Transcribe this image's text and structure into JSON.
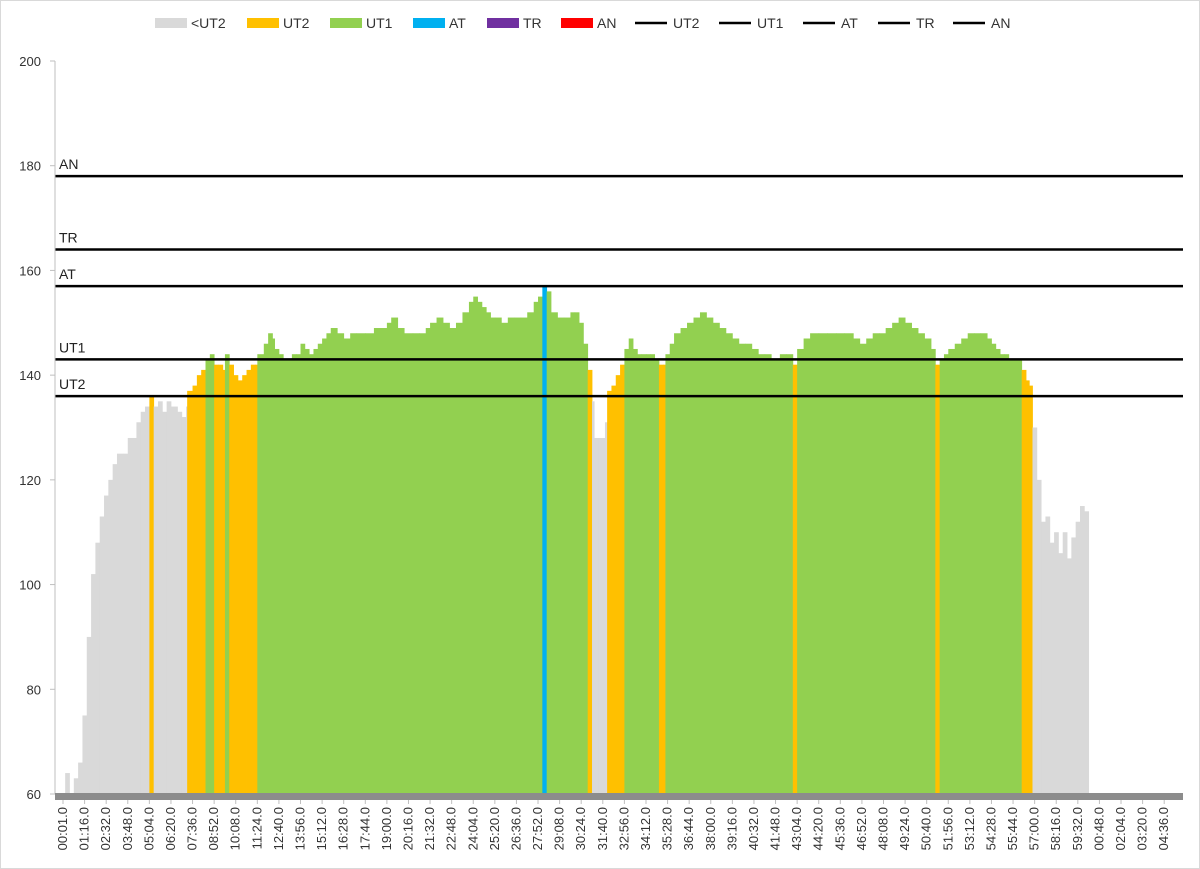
{
  "chart_data": {
    "type": "area",
    "title": "",
    "xlabel": "",
    "ylabel": "",
    "ylim": [
      60,
      200
    ],
    "yticks": [
      60,
      80,
      100,
      120,
      140,
      160,
      180,
      200
    ],
    "x_tick_labels": [
      "00:01.0",
      "01:16.0",
      "02:32.0",
      "03:48.0",
      "05:04.0",
      "06:20.0",
      "07:36.0",
      "08:52.0",
      "10:08.0",
      "11:24.0",
      "12:40.0",
      "13:56.0",
      "15:12.0",
      "16:28.0",
      "17:44.0",
      "19:00.0",
      "20:16.0",
      "21:32.0",
      "22:48.0",
      "24:04.0",
      "25:20.0",
      "26:36.0",
      "27:52.0",
      "29:08.0",
      "30:24.0",
      "31:40.0",
      "32:56.0",
      "34:12.0",
      "35:28.0",
      "36:44.0",
      "38:00.0",
      "39:16.0",
      "40:32.0",
      "41:48.0",
      "43:04.0",
      "44:20.0",
      "45:36.0",
      "46:52.0",
      "48:08.0",
      "49:24.0",
      "50:40.0",
      "51:56.0",
      "53:12.0",
      "54:28.0",
      "55:44.0",
      "57:00.0",
      "58:16.0",
      "59:32.0",
      "00:48.0",
      "02:04.0",
      "03:20.0",
      "04:36.0"
    ],
    "grid": false,
    "legend": {
      "position": "top",
      "entries": [
        {
          "label": "<UT2",
          "kind": "area",
          "color": "#d9d9d9"
        },
        {
          "label": "UT2",
          "kind": "area",
          "color": "#ffc000"
        },
        {
          "label": "UT1",
          "kind": "area",
          "color": "#92d050"
        },
        {
          "label": "AT",
          "kind": "area",
          "color": "#00b0f0"
        },
        {
          "label": "TR",
          "kind": "area",
          "color": "#7030a0"
        },
        {
          "label": "AN",
          "kind": "area",
          "color": "#ff0000"
        },
        {
          "label": "UT2",
          "kind": "line",
          "color": "#000000"
        },
        {
          "label": "UT1",
          "kind": "line",
          "color": "#000000"
        },
        {
          "label": "AT",
          "kind": "line",
          "color": "#000000"
        },
        {
          "label": "TR",
          "kind": "line",
          "color": "#000000"
        },
        {
          "label": "AN",
          "kind": "line",
          "color": "#000000"
        }
      ]
    },
    "thresholds": [
      {
        "label": "UT2",
        "value": 136
      },
      {
        "label": "UT1",
        "value": 143
      },
      {
        "label": "AT",
        "value": 157
      },
      {
        "label": "TR",
        "value": 164
      },
      {
        "label": "AN",
        "value": 178
      }
    ],
    "zone_colors": {
      "below_ut2": "#d9d9d9",
      "ut2": "#ffc000",
      "ut1": "#92d050",
      "at": "#00b0f0",
      "tr": "#7030a0",
      "an": "#ff0000"
    },
    "x_index_range": [
      0,
      51.5
    ],
    "heart_rate_series": {
      "name": "",
      "points": [
        [
          0.0,
          60
        ],
        [
          0.1,
          64
        ],
        [
          0.3,
          60
        ],
        [
          0.5,
          63
        ],
        [
          0.7,
          66
        ],
        [
          0.9,
          75
        ],
        [
          1.1,
          90
        ],
        [
          1.3,
          102
        ],
        [
          1.5,
          108
        ],
        [
          1.7,
          113
        ],
        [
          1.9,
          117
        ],
        [
          2.1,
          120
        ],
        [
          2.3,
          123
        ],
        [
          2.5,
          125
        ],
        [
          2.8,
          125
        ],
        [
          3.0,
          128
        ],
        [
          3.2,
          128
        ],
        [
          3.4,
          131
        ],
        [
          3.6,
          133
        ],
        [
          3.8,
          134
        ],
        [
          4.0,
          136
        ],
        [
          4.2,
          134
        ],
        [
          4.4,
          135
        ],
        [
          4.6,
          133
        ],
        [
          4.8,
          135
        ],
        [
          5.0,
          134
        ],
        [
          5.3,
          133
        ],
        [
          5.5,
          132
        ],
        [
          5.7,
          134
        ],
        [
          5.75,
          137
        ],
        [
          6.0,
          138
        ],
        [
          6.2,
          140
        ],
        [
          6.4,
          141
        ],
        [
          6.6,
          143
        ],
        [
          6.8,
          144
        ],
        [
          7.0,
          142
        ],
        [
          7.2,
          142
        ],
        [
          7.4,
          141
        ],
        [
          7.5,
          144
        ],
        [
          7.7,
          142
        ],
        [
          7.9,
          140
        ],
        [
          8.1,
          139
        ],
        [
          8.3,
          140
        ],
        [
          8.5,
          141
        ],
        [
          8.7,
          142
        ],
        [
          8.9,
          142
        ],
        [
          9.0,
          144
        ],
        [
          9.3,
          146
        ],
        [
          9.5,
          148
        ],
        [
          9.7,
          147
        ],
        [
          9.8,
          145
        ],
        [
          10.0,
          144
        ],
        [
          10.2,
          143
        ],
        [
          10.4,
          143
        ],
        [
          10.6,
          144
        ],
        [
          10.8,
          144
        ],
        [
          11.0,
          146
        ],
        [
          11.2,
          145
        ],
        [
          11.4,
          144
        ],
        [
          11.6,
          145
        ],
        [
          11.8,
          146
        ],
        [
          12.0,
          147
        ],
        [
          12.2,
          148
        ],
        [
          12.4,
          149
        ],
        [
          12.7,
          148
        ],
        [
          13.0,
          147
        ],
        [
          13.3,
          148
        ],
        [
          13.6,
          148
        ],
        [
          14.0,
          148
        ],
        [
          14.4,
          149
        ],
        [
          14.8,
          149
        ],
        [
          15.0,
          150
        ],
        [
          15.2,
          151
        ],
        [
          15.5,
          149
        ],
        [
          15.8,
          148
        ],
        [
          16.2,
          148
        ],
        [
          16.5,
          148
        ],
        [
          16.8,
          149
        ],
        [
          17.0,
          150
        ],
        [
          17.3,
          151
        ],
        [
          17.6,
          150
        ],
        [
          17.9,
          149
        ],
        [
          18.2,
          150
        ],
        [
          18.5,
          152
        ],
        [
          18.8,
          154
        ],
        [
          19.0,
          155
        ],
        [
          19.2,
          154
        ],
        [
          19.4,
          153
        ],
        [
          19.6,
          152
        ],
        [
          19.8,
          151
        ],
        [
          20.0,
          151
        ],
        [
          20.3,
          150
        ],
        [
          20.6,
          151
        ],
        [
          20.9,
          151
        ],
        [
          21.2,
          151
        ],
        [
          21.5,
          152
        ],
        [
          21.8,
          154
        ],
        [
          22.0,
          155
        ],
        [
          22.2,
          157
        ],
        [
          22.4,
          156
        ],
        [
          22.6,
          152
        ],
        [
          22.9,
          151
        ],
        [
          23.2,
          151
        ],
        [
          23.5,
          152
        ],
        [
          23.7,
          152
        ],
        [
          23.9,
          150
        ],
        [
          24.1,
          146
        ],
        [
          24.3,
          141
        ],
        [
          24.5,
          135
        ],
        [
          24.6,
          128
        ],
        [
          24.8,
          128
        ],
        [
          25.0,
          128
        ],
        [
          25.1,
          131
        ],
        [
          25.2,
          137
        ],
        [
          25.4,
          138
        ],
        [
          25.6,
          140
        ],
        [
          25.8,
          142
        ],
        [
          26.0,
          145
        ],
        [
          26.2,
          147
        ],
        [
          26.4,
          145
        ],
        [
          26.6,
          144
        ],
        [
          26.8,
          144
        ],
        [
          27.0,
          144
        ],
        [
          27.2,
          144
        ],
        [
          27.4,
          143
        ],
        [
          27.6,
          142
        ],
        [
          27.8,
          142
        ],
        [
          27.9,
          144
        ],
        [
          28.1,
          146
        ],
        [
          28.3,
          148
        ],
        [
          28.6,
          149
        ],
        [
          28.9,
          150
        ],
        [
          29.2,
          151
        ],
        [
          29.5,
          152
        ],
        [
          29.8,
          151
        ],
        [
          30.1,
          150
        ],
        [
          30.4,
          149
        ],
        [
          30.7,
          148
        ],
        [
          31.0,
          147
        ],
        [
          31.3,
          146
        ],
        [
          31.6,
          146
        ],
        [
          31.9,
          145
        ],
        [
          32.2,
          144
        ],
        [
          32.5,
          144
        ],
        [
          32.8,
          143
        ],
        [
          33.0,
          143
        ],
        [
          33.2,
          144
        ],
        [
          33.5,
          144
        ],
        [
          33.8,
          142
        ],
        [
          34.0,
          145
        ],
        [
          34.3,
          147
        ],
        [
          34.6,
          148
        ],
        [
          35.0,
          148
        ],
        [
          35.4,
          148
        ],
        [
          35.8,
          148
        ],
        [
          36.2,
          148
        ],
        [
          36.6,
          147
        ],
        [
          36.9,
          146
        ],
        [
          37.2,
          147
        ],
        [
          37.5,
          148
        ],
        [
          37.8,
          148
        ],
        [
          38.1,
          149
        ],
        [
          38.4,
          150
        ],
        [
          38.7,
          151
        ],
        [
          39.0,
          150
        ],
        [
          39.3,
          149
        ],
        [
          39.6,
          148
        ],
        [
          39.9,
          147
        ],
        [
          40.2,
          145
        ],
        [
          40.4,
          142
        ],
        [
          40.6,
          143
        ],
        [
          40.8,
          144
        ],
        [
          41.0,
          145
        ],
        [
          41.3,
          146
        ],
        [
          41.6,
          147
        ],
        [
          41.9,
          148
        ],
        [
          42.2,
          148
        ],
        [
          42.5,
          148
        ],
        [
          42.8,
          147
        ],
        [
          43.0,
          146
        ],
        [
          43.2,
          145
        ],
        [
          43.4,
          144
        ],
        [
          43.6,
          144
        ],
        [
          43.8,
          143
        ],
        [
          44.0,
          143
        ],
        [
          44.2,
          143
        ],
        [
          44.4,
          141
        ],
        [
          44.6,
          139
        ],
        [
          44.75,
          138
        ],
        [
          44.9,
          130
        ],
        [
          45.1,
          120
        ],
        [
          45.3,
          112
        ],
        [
          45.5,
          113
        ],
        [
          45.7,
          108
        ],
        [
          45.9,
          110
        ],
        [
          46.1,
          106
        ],
        [
          46.3,
          110
        ],
        [
          46.5,
          105
        ],
        [
          46.7,
          109
        ],
        [
          46.9,
          112
        ],
        [
          47.1,
          115
        ],
        [
          47.3,
          114
        ],
        [
          47.5,
          115
        ]
      ]
    },
    "x_index_sample_rule": "each x tick corresponds to index i; series point x is in index units along the same axis"
  }
}
